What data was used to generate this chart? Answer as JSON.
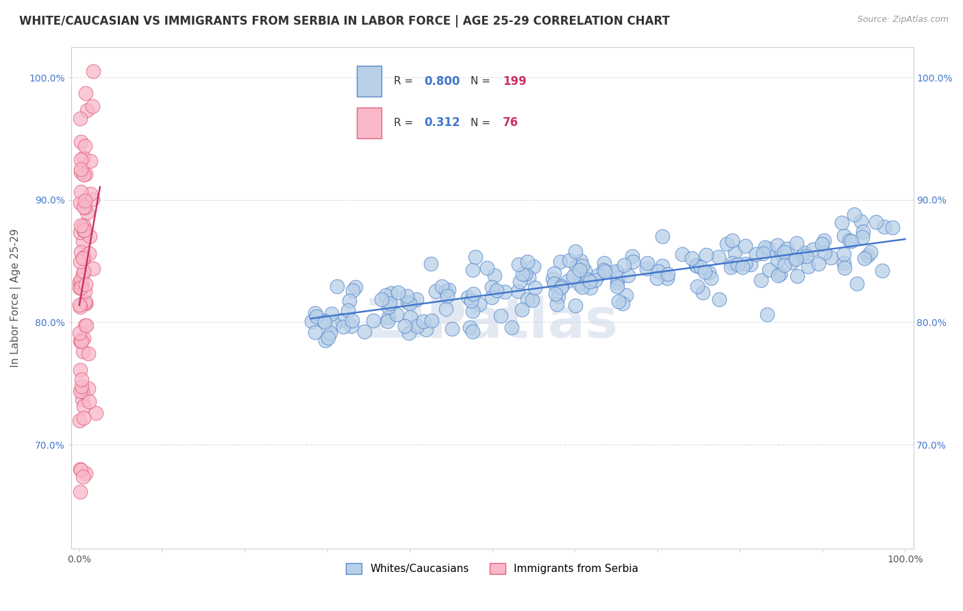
{
  "title": "WHITE/CAUCASIAN VS IMMIGRANTS FROM SERBIA IN LABOR FORCE | AGE 25-29 CORRELATION CHART",
  "source": "Source: ZipAtlas.com",
  "ylabel": "In Labor Force | Age 25-29",
  "blue_R": 0.8,
  "blue_N": 199,
  "pink_R": 0.312,
  "pink_N": 76,
  "blue_color": "#b8d0e8",
  "pink_color": "#f8b8c8",
  "blue_edge_color": "#5588cc",
  "pink_edge_color": "#e06080",
  "blue_line_color": "#4477cc",
  "pink_line_color": "#cc3366",
  "legend_label_blue": "Whites/Caucasians",
  "legend_label_pink": "Immigrants from Serbia",
  "xlim": [
    -0.01,
    1.01
  ],
  "ylim": [
    0.615,
    1.025
  ],
  "y_ticks": [
    0.7,
    0.8,
    0.9,
    1.0
  ],
  "y_tick_labels": [
    "70.0%",
    "80.0%",
    "90.0%",
    "100.0%"
  ],
  "x_tick_labels_show": [
    "0.0%",
    "100.0%"
  ],
  "watermark": "ZIPatlas",
  "grid_color": "#dddddd",
  "background_color": "#ffffff",
  "title_fontsize": 12,
  "axis_label_fontsize": 11,
  "tick_fontsize": 10,
  "legend_text_color_blue": "#4477cc",
  "legend_text_color_pink": "#cc3366",
  "legend_label_color": "#333333"
}
